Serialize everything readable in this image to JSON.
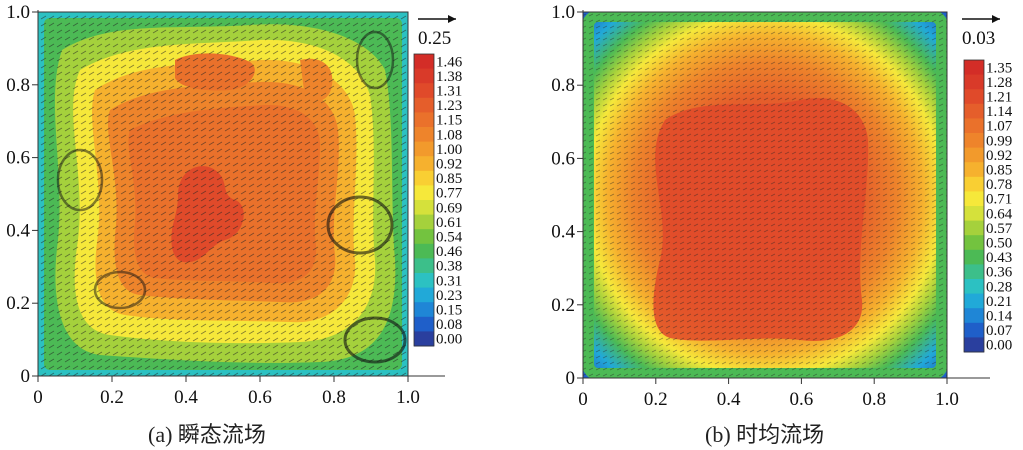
{
  "chart_data": [
    {
      "type": "heatmap",
      "variant": "instantaneous",
      "caption": "(a) 瞬态流场",
      "xlim": [
        0,
        1.0
      ],
      "ylim": [
        0,
        1.0
      ],
      "x_ticks": [
        "0",
        "0.2",
        "0.4",
        "0.6",
        "0.8",
        "1.0"
      ],
      "y_ticks": [
        "0",
        "0.2",
        "0.4",
        "0.6",
        "0.8",
        "1.0"
      ],
      "reference_vector_label": "0.25",
      "colorbar_labels": [
        "1.46",
        "1.38",
        "1.31",
        "1.23",
        "1.15",
        "1.08",
        "1.00",
        "0.92",
        "0.85",
        "0.77",
        "0.69",
        "0.61",
        "0.54",
        "0.46",
        "0.38",
        "0.31",
        "0.23",
        "0.15",
        "0.08",
        "0.00"
      ],
      "value_range": [
        0.0,
        1.46
      ],
      "overlay": "velocity vectors",
      "grid": false
    },
    {
      "type": "heatmap",
      "variant": "time-averaged",
      "caption": "(b) 时均流场",
      "xlim": [
        0,
        1.0
      ],
      "ylim": [
        0,
        1.0
      ],
      "x_ticks": [
        "0",
        "0.2",
        "0.4",
        "0.6",
        "0.8",
        "1.0"
      ],
      "y_ticks": [
        "0",
        "0.2",
        "0.4",
        "0.6",
        "0.8",
        "1.0"
      ],
      "reference_vector_label": "0.03",
      "colorbar_labels": [
        "1.35",
        "1.28",
        "1.21",
        "1.14",
        "1.07",
        "0.99",
        "0.92",
        "0.85",
        "0.78",
        "0.71",
        "0.64",
        "0.57",
        "0.50",
        "0.43",
        "0.36",
        "0.28",
        "0.21",
        "0.14",
        "0.07",
        "0.00"
      ],
      "value_range": [
        0.0,
        1.35
      ],
      "overlay": "velocity vectors",
      "grid": false
    }
  ],
  "colormap": [
    "#2a3f9e",
    "#1f5fc9",
    "#1f86d6",
    "#21a9d8",
    "#2cc1c2",
    "#3cbf8a",
    "#4cba55",
    "#73c33f",
    "#a5d13c",
    "#d5e13b",
    "#f6e83a",
    "#f9cf33",
    "#f6b12e",
    "#f29a2c",
    "#ee842b",
    "#ea712b",
    "#e55e2b",
    "#e04a2a",
    "#d93a29",
    "#d32d27"
  ]
}
